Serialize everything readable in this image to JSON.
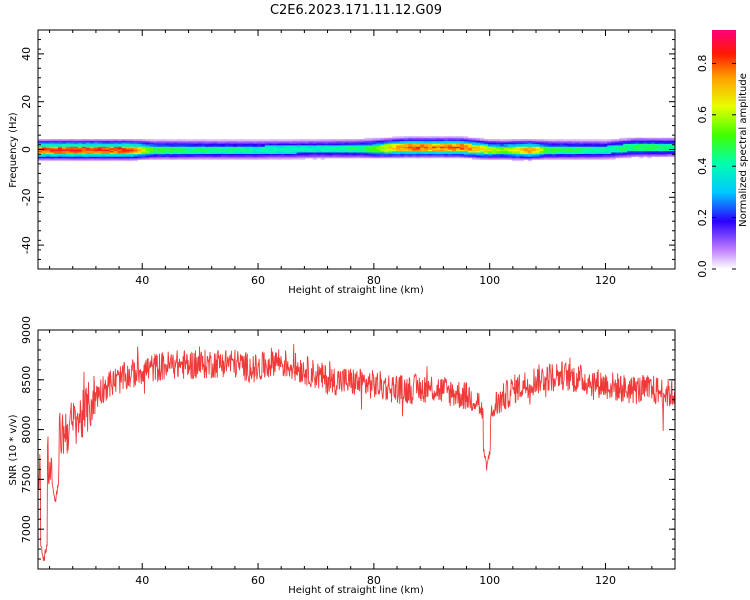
{
  "title": "C2E6.2023.171.11.12.G09",
  "chart_data": [
    {
      "type": "heatmap",
      "xlabel": "Height of straight line (km)",
      "ylabel": "Frequency (Hz)",
      "xlim": [
        22,
        132
      ],
      "ylim": [
        -50,
        50
      ],
      "xticks": [
        40,
        60,
        80,
        100,
        120
      ],
      "yticks": [
        -40,
        -20,
        0,
        20,
        40
      ],
      "colorbar": {
        "label": "Normalized spectral amplitude",
        "ticks": [
          0.0,
          0.2,
          0.4,
          0.6,
          0.8
        ],
        "range": [
          0,
          0.93
        ]
      },
      "band_center_hz": [
        [
          22,
          0
        ],
        [
          40,
          0
        ],
        [
          60,
          0
        ],
        [
          80,
          0.5
        ],
        [
          86,
          1
        ],
        [
          95,
          1
        ],
        [
          100,
          0
        ],
        [
          108,
          0
        ],
        [
          120,
          0
        ],
        [
          125,
          1
        ],
        [
          132,
          1
        ]
      ],
      "band_halfwidth_hz": 3.5,
      "peak_amplitude": [
        [
          22,
          0.82
        ],
        [
          30,
          0.86
        ],
        [
          38,
          0.84
        ],
        [
          42,
          0.5
        ],
        [
          50,
          0.45
        ],
        [
          60,
          0.42
        ],
        [
          70,
          0.4
        ],
        [
          78,
          0.45
        ],
        [
          82,
          0.65
        ],
        [
          86,
          0.82
        ],
        [
          90,
          0.78
        ],
        [
          95,
          0.82
        ],
        [
          99,
          0.68
        ],
        [
          102,
          0.55
        ],
        [
          107,
          0.78
        ],
        [
          110,
          0.5
        ],
        [
          120,
          0.42
        ],
        [
          126,
          0.5
        ],
        [
          132,
          0.45
        ]
      ]
    },
    {
      "type": "line",
      "xlabel": "Height of straight line (km)",
      "ylabel": "SNR (10 * v/v)",
      "xlim": [
        22,
        132
      ],
      "ylim": [
        6600,
        9000
      ],
      "xticks": [
        40,
        60,
        80,
        100,
        120
      ],
      "yticks": [
        7000,
        7500,
        8000,
        8500,
        9000
      ],
      "series": [
        {
          "color": "#f03a3a",
          "x": [
            22,
            24,
            26,
            28,
            30,
            32,
            34,
            36,
            38,
            40,
            45,
            50,
            55,
            60,
            63,
            65,
            68,
            72,
            76,
            80,
            85,
            90,
            95,
            98,
            99.5,
            101,
            104,
            108,
            112,
            116,
            120,
            124,
            128,
            132
          ],
          "y": [
            7600,
            7700,
            7950,
            8050,
            8150,
            8350,
            8450,
            8500,
            8550,
            8600,
            8650,
            8650,
            8680,
            8600,
            8700,
            8650,
            8600,
            8500,
            8480,
            8450,
            8400,
            8420,
            8350,
            8300,
            7950,
            8250,
            8400,
            8500,
            8550,
            8500,
            8450,
            8400,
            8400,
            8350
          ],
          "dips": [
            [
              23,
              6650
            ],
            [
              25,
              7250
            ],
            [
              99.5,
              7580
            ]
          ]
        }
      ]
    }
  ]
}
